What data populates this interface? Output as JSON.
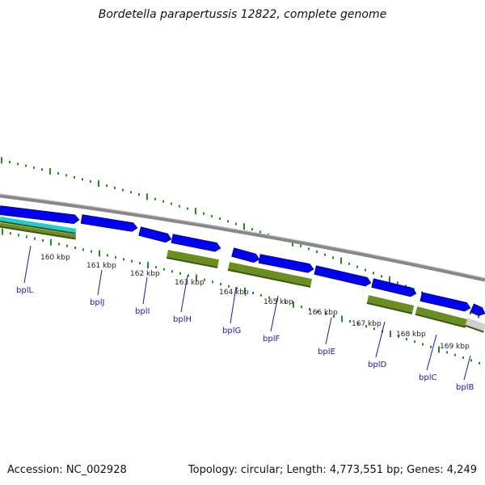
{
  "title": "Bordetella parapertussis 12822, complete genome",
  "footer": {
    "accession": "Accession: NC_002928",
    "summary": "Topology: circular; Length: 4,773,551 bp; Genes: 4,249"
  },
  "colors": {
    "background": "#ffffff",
    "backbone": "#888888",
    "cds_blue": "#0000ee",
    "gene_green": "#6b8e23",
    "tick_green": "#228b22",
    "label_blue": "#1a1aaa",
    "cyan_track": "#22cccc"
  },
  "scale_labels": [
    "160 kbp",
    "161 kbp",
    "162 kbp",
    "163 kbp",
    "164 kbp",
    "165 kbp",
    "166 kbp",
    "167 kbp",
    "168 kbp",
    "169 kbp"
  ],
  "gene_labels": [
    "bplL",
    "bplJ",
    "bplI",
    "bplH",
    "bplG",
    "bplF",
    "bplE",
    "bplD",
    "bplC",
    "bplB"
  ]
}
